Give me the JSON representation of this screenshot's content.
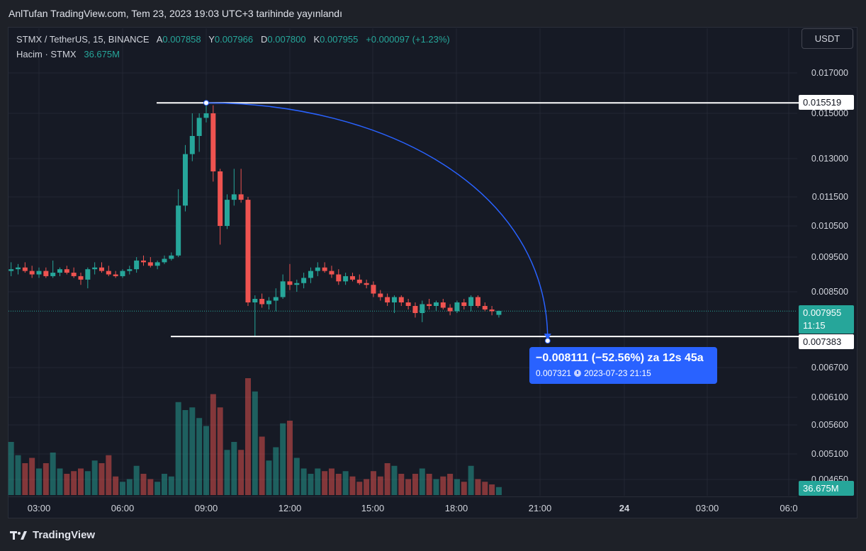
{
  "header": {
    "credit": "AnlTufan TradingView.com, Tem 23, 2023 19:03 UTC+3 tarihinde yayınlandı"
  },
  "legend": {
    "symbol": "STMX / TetherUS, 15, BINANCE",
    "o_key": "A",
    "o_val": "0.007858",
    "h_key": "Y",
    "h_val": "0.007966",
    "l_key": "D",
    "l_val": "0.007800",
    "c_key": "K",
    "c_val": "0.007955",
    "change": "+0.000097 (+1.23%)",
    "volume_key": "Hacim · STMX",
    "volume_val": "36.675M"
  },
  "currency": "USDT",
  "price_axis": {
    "ticks": [
      "0.017000",
      "0.015000",
      "0.013000",
      "0.011500",
      "0.010500",
      "0.009500",
      "0.008500",
      "0.006700",
      "0.006100",
      "0.005600",
      "0.005100",
      "0.004650"
    ]
  },
  "time_axis": {
    "ticks": [
      {
        "label": "03:00",
        "bold": false
      },
      {
        "label": "06:00",
        "bold": false
      },
      {
        "label": "09:00",
        "bold": false
      },
      {
        "label": "12:00",
        "bold": false
      },
      {
        "label": "15:00",
        "bold": false
      },
      {
        "label": "18:00",
        "bold": false
      },
      {
        "label": "21:00",
        "bold": false
      },
      {
        "label": "24",
        "bold": true
      },
      {
        "label": "03:00",
        "bold": false
      },
      {
        "label": "06:0",
        "bold": false
      }
    ]
  },
  "labels": {
    "top_line_price": "0.015519",
    "bottom_line_price": "0.007383",
    "last_price": "0.007955",
    "countdown": "11:15",
    "last_volume": "36.675M"
  },
  "measure": {
    "line1": "−0.008111 (−52.56%) za 12s 45a",
    "price": "0.007321",
    "datetime": "2023-07-23   21:15"
  },
  "colors": {
    "up": "#26a69a",
    "down": "#ef5350",
    "measure": "#2962ff",
    "background": "#161a25"
  },
  "footer": {
    "brand": "TradingView"
  },
  "chart_data": {
    "type": "candlestick",
    "title": "STMX / TetherUS, 15, BINANCE",
    "interval": "15",
    "notes": "approximate OHLC read from image",
    "candles": [
      {
        "t": "02:00",
        "o": 0.0091,
        "h": 0.00935,
        "l": 0.00895,
        "c": 0.00915,
        "v": 20
      },
      {
        "t": "02:15",
        "o": 0.00915,
        "h": 0.0093,
        "l": 0.009,
        "c": 0.0092,
        "v": 15
      },
      {
        "t": "02:30",
        "o": 0.0092,
        "h": 0.00935,
        "l": 0.00905,
        "c": 0.0091,
        "v": 12
      },
      {
        "t": "02:45",
        "o": 0.0091,
        "h": 0.00925,
        "l": 0.0089,
        "c": 0.009,
        "v": 14
      },
      {
        "t": "03:00",
        "o": 0.009,
        "h": 0.0092,
        "l": 0.0089,
        "c": 0.0091,
        "v": 10
      },
      {
        "t": "03:15",
        "o": 0.0091,
        "h": 0.0092,
        "l": 0.0089,
        "c": 0.00895,
        "v": 12
      },
      {
        "t": "03:30",
        "o": 0.00895,
        "h": 0.0094,
        "l": 0.0089,
        "c": 0.00905,
        "v": 16
      },
      {
        "t": "03:45",
        "o": 0.00905,
        "h": 0.0092,
        "l": 0.00895,
        "c": 0.00915,
        "v": 10
      },
      {
        "t": "04:00",
        "o": 0.00915,
        "h": 0.00925,
        "l": 0.009,
        "c": 0.00905,
        "v": 8
      },
      {
        "t": "04:15",
        "o": 0.00905,
        "h": 0.0092,
        "l": 0.0089,
        "c": 0.00895,
        "v": 9
      },
      {
        "t": "04:30",
        "o": 0.00895,
        "h": 0.00905,
        "l": 0.0087,
        "c": 0.00885,
        "v": 10
      },
      {
        "t": "04:45",
        "o": 0.00885,
        "h": 0.0092,
        "l": 0.0086,
        "c": 0.00915,
        "v": 9
      },
      {
        "t": "05:00",
        "o": 0.00915,
        "h": 0.00935,
        "l": 0.009,
        "c": 0.0092,
        "v": 13
      },
      {
        "t": "05:15",
        "o": 0.0092,
        "h": 0.00935,
        "l": 0.00905,
        "c": 0.0091,
        "v": 12
      },
      {
        "t": "05:30",
        "o": 0.0091,
        "h": 0.00925,
        "l": 0.00895,
        "c": 0.009,
        "v": 15
      },
      {
        "t": "05:45",
        "o": 0.009,
        "h": 0.0091,
        "l": 0.0089,
        "c": 0.00895,
        "v": 7
      },
      {
        "t": "06:00",
        "o": 0.00895,
        "h": 0.00915,
        "l": 0.0089,
        "c": 0.0091,
        "v": 5
      },
      {
        "t": "06:15",
        "o": 0.0091,
        "h": 0.00925,
        "l": 0.009,
        "c": 0.00915,
        "v": 6
      },
      {
        "t": "06:30",
        "o": 0.00915,
        "h": 0.0095,
        "l": 0.00905,
        "c": 0.0094,
        "v": 11
      },
      {
        "t": "06:45",
        "o": 0.0094,
        "h": 0.00955,
        "l": 0.00925,
        "c": 0.00935,
        "v": 8
      },
      {
        "t": "07:00",
        "o": 0.00935,
        "h": 0.0095,
        "l": 0.0092,
        "c": 0.00925,
        "v": 6
      },
      {
        "t": "07:15",
        "o": 0.00925,
        "h": 0.0094,
        "l": 0.00915,
        "c": 0.00935,
        "v": 5
      },
      {
        "t": "07:30",
        "o": 0.00935,
        "h": 0.00955,
        "l": 0.0093,
        "c": 0.00945,
        "v": 8
      },
      {
        "t": "07:45",
        "o": 0.00945,
        "h": 0.00965,
        "l": 0.0094,
        "c": 0.00955,
        "v": 7
      },
      {
        "t": "08:00",
        "o": 0.00955,
        "h": 0.0118,
        "l": 0.0095,
        "c": 0.0112,
        "v": 35
      },
      {
        "t": "08:15",
        "o": 0.0112,
        "h": 0.0136,
        "l": 0.011,
        "c": 0.0132,
        "v": 32
      },
      {
        "t": "08:30",
        "o": 0.0132,
        "h": 0.015,
        "l": 0.0129,
        "c": 0.014,
        "v": 33
      },
      {
        "t": "08:45",
        "o": 0.014,
        "h": 0.015,
        "l": 0.0133,
        "c": 0.0148,
        "v": 29
      },
      {
        "t": "09:00",
        "o": 0.0148,
        "h": 0.01552,
        "l": 0.0146,
        "c": 0.015,
        "v": 26
      },
      {
        "t": "09:15",
        "o": 0.015,
        "h": 0.0154,
        "l": 0.0121,
        "c": 0.0125,
        "v": 38
      },
      {
        "t": "09:30",
        "o": 0.0125,
        "h": 0.0126,
        "l": 0.0099,
        "c": 0.0105,
        "v": 33
      },
      {
        "t": "09:45",
        "o": 0.0105,
        "h": 0.0116,
        "l": 0.0104,
        "c": 0.0114,
        "v": 17
      },
      {
        "t": "10:00",
        "o": 0.0114,
        "h": 0.0126,
        "l": 0.0112,
        "c": 0.0116,
        "v": 20
      },
      {
        "t": "10:15",
        "o": 0.0116,
        "h": 0.0126,
        "l": 0.0113,
        "c": 0.0114,
        "v": 17
      },
      {
        "t": "10:30",
        "o": 0.0114,
        "h": 0.0115,
        "l": 0.0081,
        "c": 0.0082,
        "v": 44
      },
      {
        "t": "10:45",
        "o": 0.0082,
        "h": 0.0084,
        "l": 0.00738,
        "c": 0.0083,
        "v": 39
      },
      {
        "t": "11:00",
        "o": 0.0083,
        "h": 0.00845,
        "l": 0.00805,
        "c": 0.00815,
        "v": 22
      },
      {
        "t": "11:15",
        "o": 0.00815,
        "h": 0.00835,
        "l": 0.008,
        "c": 0.00825,
        "v": 13
      },
      {
        "t": "11:30",
        "o": 0.00825,
        "h": 0.0086,
        "l": 0.00795,
        "c": 0.00835,
        "v": 18
      },
      {
        "t": "11:45",
        "o": 0.00835,
        "h": 0.009,
        "l": 0.0083,
        "c": 0.0088,
        "v": 27
      },
      {
        "t": "12:00",
        "o": 0.0088,
        "h": 0.0093,
        "l": 0.00855,
        "c": 0.0087,
        "v": 28
      },
      {
        "t": "12:15",
        "o": 0.0087,
        "h": 0.00885,
        "l": 0.0085,
        "c": 0.00875,
        "v": 14
      },
      {
        "t": "12:30",
        "o": 0.00875,
        "h": 0.00905,
        "l": 0.0086,
        "c": 0.0089,
        "v": 10
      },
      {
        "t": "12:45",
        "o": 0.0089,
        "h": 0.0092,
        "l": 0.00875,
        "c": 0.0091,
        "v": 8
      },
      {
        "t": "13:00",
        "o": 0.0091,
        "h": 0.00935,
        "l": 0.00895,
        "c": 0.0092,
        "v": 10
      },
      {
        "t": "13:15",
        "o": 0.0092,
        "h": 0.00935,
        "l": 0.00905,
        "c": 0.0091,
        "v": 9
      },
      {
        "t": "13:30",
        "o": 0.0091,
        "h": 0.00925,
        "l": 0.0089,
        "c": 0.009,
        "v": 10
      },
      {
        "t": "13:45",
        "o": 0.009,
        "h": 0.00915,
        "l": 0.0087,
        "c": 0.0088,
        "v": 8
      },
      {
        "t": "14:00",
        "o": 0.0088,
        "h": 0.00905,
        "l": 0.0087,
        "c": 0.00895,
        "v": 9
      },
      {
        "t": "14:15",
        "o": 0.00895,
        "h": 0.00905,
        "l": 0.0088,
        "c": 0.00885,
        "v": 7
      },
      {
        "t": "14:30",
        "o": 0.00885,
        "h": 0.009,
        "l": 0.0087,
        "c": 0.00875,
        "v": 5
      },
      {
        "t": "14:45",
        "o": 0.00875,
        "h": 0.00885,
        "l": 0.0086,
        "c": 0.0087,
        "v": 6
      },
      {
        "t": "15:00",
        "o": 0.0087,
        "h": 0.0088,
        "l": 0.00835,
        "c": 0.00845,
        "v": 9
      },
      {
        "t": "15:15",
        "o": 0.00845,
        "h": 0.00855,
        "l": 0.00825,
        "c": 0.00835,
        "v": 7
      },
      {
        "t": "15:30",
        "o": 0.00835,
        "h": 0.00845,
        "l": 0.0081,
        "c": 0.0082,
        "v": 12
      },
      {
        "t": "15:45",
        "o": 0.0082,
        "h": 0.0084,
        "l": 0.0079,
        "c": 0.00835,
        "v": 11
      },
      {
        "t": "16:00",
        "o": 0.00835,
        "h": 0.0084,
        "l": 0.0081,
        "c": 0.0082,
        "v": 8
      },
      {
        "t": "16:15",
        "o": 0.0082,
        "h": 0.0083,
        "l": 0.008,
        "c": 0.0081,
        "v": 6
      },
      {
        "t": "16:30",
        "o": 0.0081,
        "h": 0.0082,
        "l": 0.0078,
        "c": 0.0079,
        "v": 8
      },
      {
        "t": "16:45",
        "o": 0.0079,
        "h": 0.00825,
        "l": 0.0077,
        "c": 0.00815,
        "v": 10
      },
      {
        "t": "17:00",
        "o": 0.00815,
        "h": 0.0083,
        "l": 0.008,
        "c": 0.0081,
        "v": 8
      },
      {
        "t": "17:15",
        "o": 0.0081,
        "h": 0.00825,
        "l": 0.00795,
        "c": 0.0082,
        "v": 6
      },
      {
        "t": "17:30",
        "o": 0.0082,
        "h": 0.0083,
        "l": 0.008,
        "c": 0.00805,
        "v": 7
      },
      {
        "t": "17:45",
        "o": 0.00805,
        "h": 0.00815,
        "l": 0.00785,
        "c": 0.00795,
        "v": 8
      },
      {
        "t": "18:00",
        "o": 0.00795,
        "h": 0.00825,
        "l": 0.0079,
        "c": 0.0082,
        "v": 6
      },
      {
        "t": "18:15",
        "o": 0.0082,
        "h": 0.0083,
        "l": 0.008,
        "c": 0.0081,
        "v": 5
      },
      {
        "t": "18:30",
        "o": 0.0081,
        "h": 0.0084,
        "l": 0.00795,
        "c": 0.00835,
        "v": 11
      },
      {
        "t": "18:45",
        "o": 0.00835,
        "h": 0.0084,
        "l": 0.00805,
        "c": 0.0081,
        "v": 6
      },
      {
        "t": "19:00",
        "o": 0.0081,
        "h": 0.0082,
        "l": 0.00795,
        "c": 0.008,
        "v": 5
      },
      {
        "t": "19:15",
        "o": 0.008,
        "h": 0.0081,
        "l": 0.00785,
        "c": 0.00795,
        "v": 4
      },
      {
        "t": "19:30",
        "o": 0.00786,
        "h": 0.00797,
        "l": 0.0078,
        "c": 0.00796,
        "v": 3
      }
    ],
    "horizontal_lines": [
      0.015519,
      0.007383
    ],
    "projection": {
      "from_price": 0.015519,
      "to_price": 0.007321,
      "to_time": "2023-07-23 21:15",
      "change": "−0.008111 (−52.56%)"
    }
  }
}
